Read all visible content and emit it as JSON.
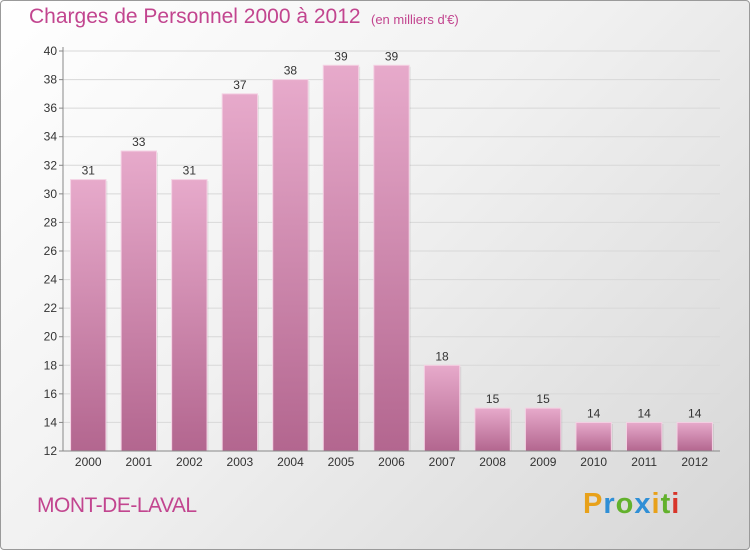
{
  "title": "Charges de Personnel 2000 à 2012",
  "subtitle": "(en milliers d'€)",
  "commune": "MONT-DE-LAVAL",
  "logo": {
    "letters": [
      "P",
      "r",
      "o",
      "x",
      "i",
      "t",
      "i"
    ],
    "colors": [
      "#e8a11a",
      "#2f8fd6",
      "#62b12c",
      "#2f8fd6",
      "#e8a11a",
      "#62b12c",
      "#d8352a"
    ]
  },
  "colors": {
    "bar_top": "#e7aacb",
    "bar_bottom": "#b3668f",
    "title": "#c2458f"
  },
  "chart_data": {
    "type": "bar",
    "title": "Charges de Personnel 2000 à 2012",
    "subtitle": "(en milliers d'€)",
    "categories": [
      "2000",
      "2001",
      "2002",
      "2003",
      "2004",
      "2005",
      "2006",
      "2007",
      "2008",
      "2009",
      "2010",
      "2011",
      "2012"
    ],
    "values": [
      31,
      33,
      31,
      37,
      38,
      39,
      39,
      18,
      15,
      15,
      14,
      14,
      14
    ],
    "ylim": [
      12,
      40
    ],
    "yticks": [
      12,
      14,
      16,
      18,
      20,
      22,
      24,
      26,
      28,
      30,
      32,
      34,
      36,
      38,
      40
    ],
    "grid": true,
    "legend": "none"
  }
}
